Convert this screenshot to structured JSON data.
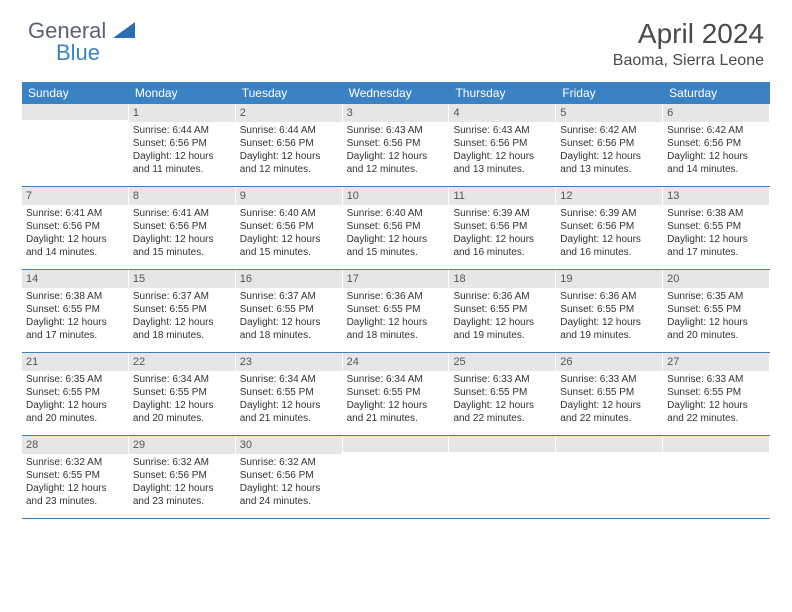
{
  "logo": {
    "text1": "General",
    "text2": "Blue"
  },
  "title": "April 2024",
  "location": "Baoma, Sierra Leone",
  "weekdays": [
    "Sunday",
    "Monday",
    "Tuesday",
    "Wednesday",
    "Thursday",
    "Friday",
    "Saturday"
  ],
  "colors": {
    "header_bg": "#3b82c4",
    "header_text": "#ffffff",
    "daynum_bg": "#e6e6e6",
    "border": "#3b82c4",
    "logo_gray": "#5a6470",
    "logo_blue": "#3b82c4"
  },
  "weeks": [
    [
      {
        "n": "",
        "sr": "",
        "ss": "",
        "dl": ""
      },
      {
        "n": "1",
        "sr": "6:44 AM",
        "ss": "6:56 PM",
        "dl": "12 hours and 11 minutes."
      },
      {
        "n": "2",
        "sr": "6:44 AM",
        "ss": "6:56 PM",
        "dl": "12 hours and 12 minutes."
      },
      {
        "n": "3",
        "sr": "6:43 AM",
        "ss": "6:56 PM",
        "dl": "12 hours and 12 minutes."
      },
      {
        "n": "4",
        "sr": "6:43 AM",
        "ss": "6:56 PM",
        "dl": "12 hours and 13 minutes."
      },
      {
        "n": "5",
        "sr": "6:42 AM",
        "ss": "6:56 PM",
        "dl": "12 hours and 13 minutes."
      },
      {
        "n": "6",
        "sr": "6:42 AM",
        "ss": "6:56 PM",
        "dl": "12 hours and 14 minutes."
      }
    ],
    [
      {
        "n": "7",
        "sr": "6:41 AM",
        "ss": "6:56 PM",
        "dl": "12 hours and 14 minutes."
      },
      {
        "n": "8",
        "sr": "6:41 AM",
        "ss": "6:56 PM",
        "dl": "12 hours and 15 minutes."
      },
      {
        "n": "9",
        "sr": "6:40 AM",
        "ss": "6:56 PM",
        "dl": "12 hours and 15 minutes."
      },
      {
        "n": "10",
        "sr": "6:40 AM",
        "ss": "6:56 PM",
        "dl": "12 hours and 15 minutes."
      },
      {
        "n": "11",
        "sr": "6:39 AM",
        "ss": "6:56 PM",
        "dl": "12 hours and 16 minutes."
      },
      {
        "n": "12",
        "sr": "6:39 AM",
        "ss": "6:56 PM",
        "dl": "12 hours and 16 minutes."
      },
      {
        "n": "13",
        "sr": "6:38 AM",
        "ss": "6:55 PM",
        "dl": "12 hours and 17 minutes."
      }
    ],
    [
      {
        "n": "14",
        "sr": "6:38 AM",
        "ss": "6:55 PM",
        "dl": "12 hours and 17 minutes."
      },
      {
        "n": "15",
        "sr": "6:37 AM",
        "ss": "6:55 PM",
        "dl": "12 hours and 18 minutes."
      },
      {
        "n": "16",
        "sr": "6:37 AM",
        "ss": "6:55 PM",
        "dl": "12 hours and 18 minutes."
      },
      {
        "n": "17",
        "sr": "6:36 AM",
        "ss": "6:55 PM",
        "dl": "12 hours and 18 minutes."
      },
      {
        "n": "18",
        "sr": "6:36 AM",
        "ss": "6:55 PM",
        "dl": "12 hours and 19 minutes."
      },
      {
        "n": "19",
        "sr": "6:36 AM",
        "ss": "6:55 PM",
        "dl": "12 hours and 19 minutes."
      },
      {
        "n": "20",
        "sr": "6:35 AM",
        "ss": "6:55 PM",
        "dl": "12 hours and 20 minutes."
      }
    ],
    [
      {
        "n": "21",
        "sr": "6:35 AM",
        "ss": "6:55 PM",
        "dl": "12 hours and 20 minutes."
      },
      {
        "n": "22",
        "sr": "6:34 AM",
        "ss": "6:55 PM",
        "dl": "12 hours and 20 minutes."
      },
      {
        "n": "23",
        "sr": "6:34 AM",
        "ss": "6:55 PM",
        "dl": "12 hours and 21 minutes."
      },
      {
        "n": "24",
        "sr": "6:34 AM",
        "ss": "6:55 PM",
        "dl": "12 hours and 21 minutes."
      },
      {
        "n": "25",
        "sr": "6:33 AM",
        "ss": "6:55 PM",
        "dl": "12 hours and 22 minutes."
      },
      {
        "n": "26",
        "sr": "6:33 AM",
        "ss": "6:55 PM",
        "dl": "12 hours and 22 minutes."
      },
      {
        "n": "27",
        "sr": "6:33 AM",
        "ss": "6:55 PM",
        "dl": "12 hours and 22 minutes."
      }
    ],
    [
      {
        "n": "28",
        "sr": "6:32 AM",
        "ss": "6:55 PM",
        "dl": "12 hours and 23 minutes."
      },
      {
        "n": "29",
        "sr": "6:32 AM",
        "ss": "6:56 PM",
        "dl": "12 hours and 23 minutes."
      },
      {
        "n": "30",
        "sr": "6:32 AM",
        "ss": "6:56 PM",
        "dl": "12 hours and 24 minutes."
      },
      {
        "n": "",
        "sr": "",
        "ss": "",
        "dl": ""
      },
      {
        "n": "",
        "sr": "",
        "ss": "",
        "dl": ""
      },
      {
        "n": "",
        "sr": "",
        "ss": "",
        "dl": ""
      },
      {
        "n": "",
        "sr": "",
        "ss": "",
        "dl": ""
      }
    ]
  ],
  "labels": {
    "sunrise": "Sunrise:",
    "sunset": "Sunset:",
    "daylight": "Daylight:"
  }
}
